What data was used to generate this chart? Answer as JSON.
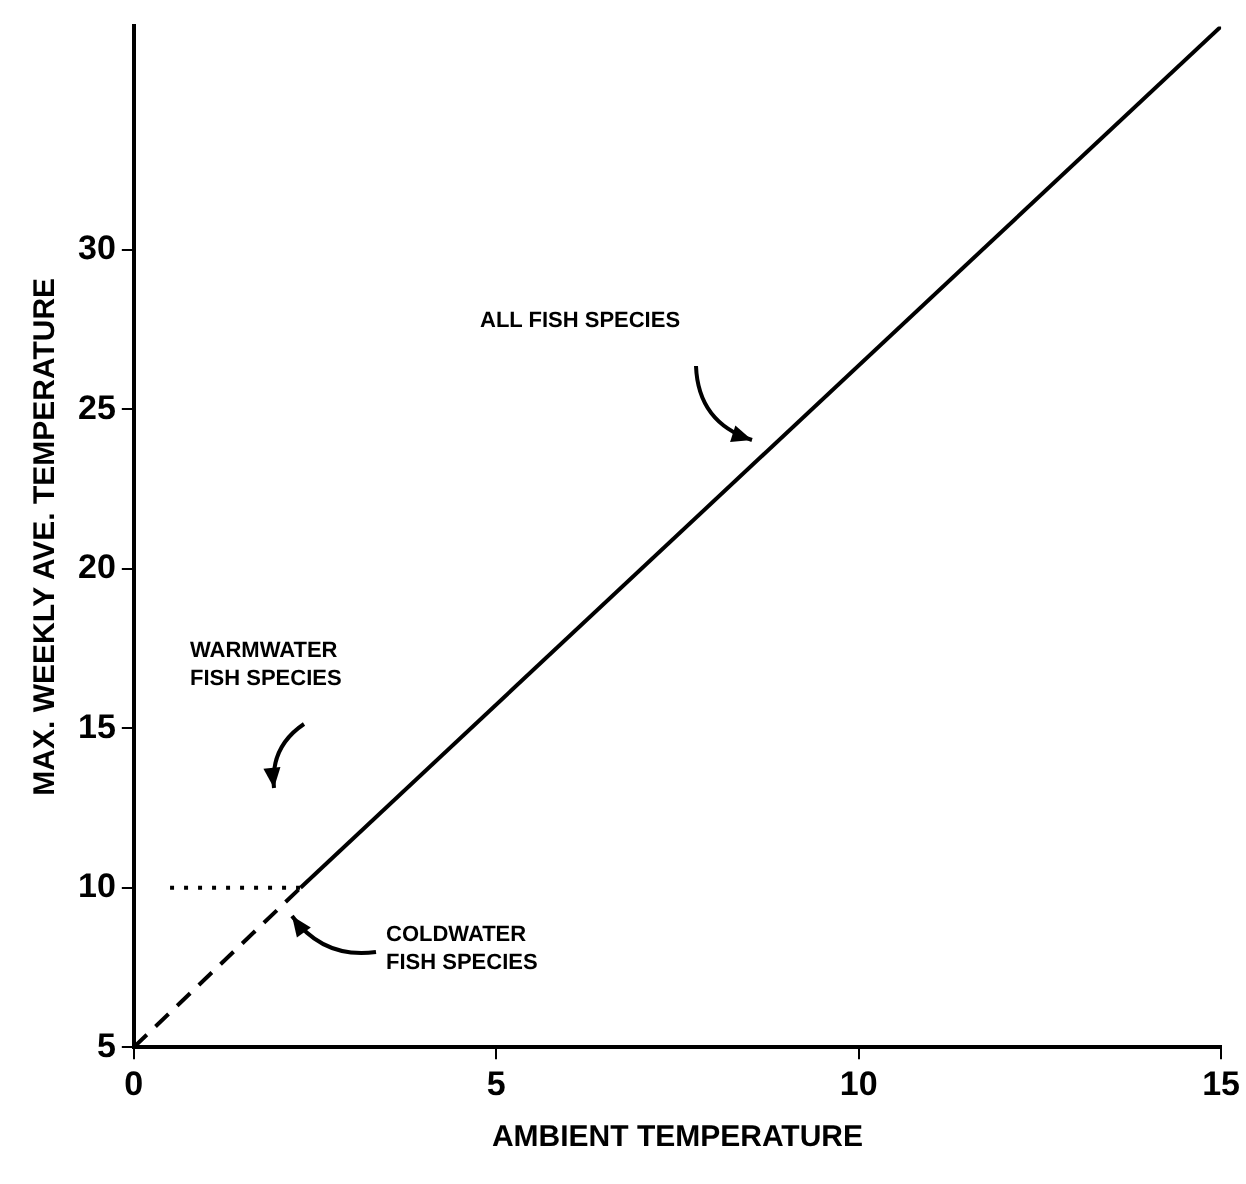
{
  "chart_data": {
    "type": "line",
    "xlabel": "AMBIENT TEMPERATURE",
    "ylabel": "MAX. WEEKLY AVE. TEMPERATURE",
    "xlim": [
      0,
      15
    ],
    "xticks": [
      0,
      5,
      10,
      15
    ],
    "ylim": [
      5,
      37
    ],
    "yticks": [
      5,
      10,
      15,
      20,
      25,
      30
    ],
    "grid": false,
    "legend": false,
    "marker": "none",
    "series": [
      {
        "color": "#000000",
        "x": [
          2.3,
          15
        ],
        "values": [
          10,
          37
        ],
        "line_style": "solid"
      },
      {
        "color": "#000000",
        "x": [
          0.5,
          2.3
        ],
        "values": [
          10,
          10
        ],
        "line_style": "dotted"
      },
      {
        "color": "#000000",
        "x": [
          0,
          2.3
        ],
        "values": [
          5,
          10
        ],
        "line_style": "dashed"
      }
    ],
    "annotations": [
      "ALL FISH SPECIES",
      "WARMWATER\nFISH SPECIES",
      "COLDWATER\nFISH SPECIES"
    ]
  }
}
